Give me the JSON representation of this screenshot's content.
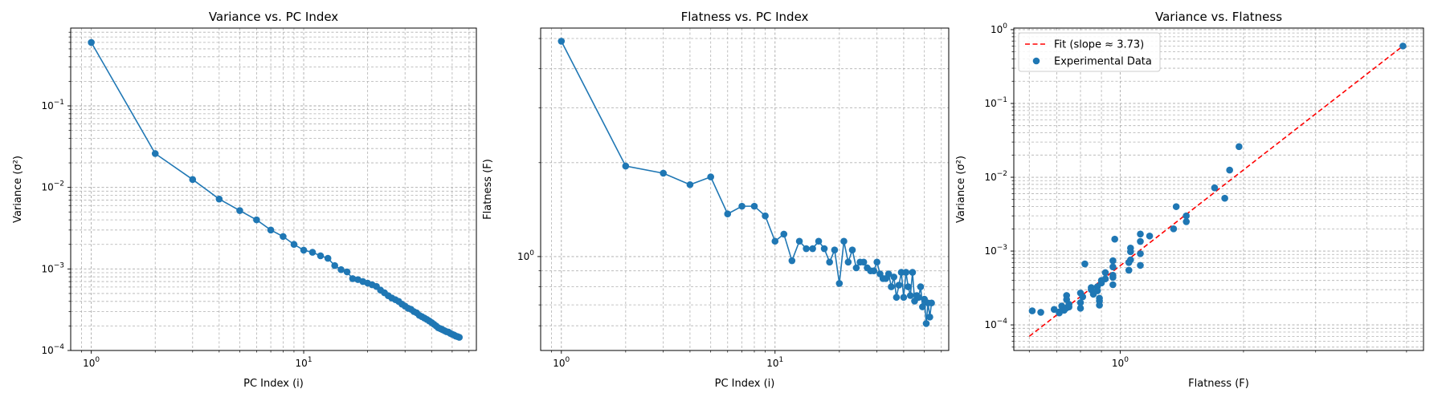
{
  "chart_data": [
    {
      "type": "line",
      "title": "Variance vs. PC Index",
      "xlabel": "PC Index (i)",
      "ylabel": "Variance (σ²)",
      "xscale": "log",
      "yscale": "log",
      "xlim": [
        0.8,
        65
      ],
      "ylim": [
        0.0001,
        0.9
      ],
      "grid": "both-major-minor",
      "color": "#1f77b4",
      "xticks": [
        {
          "value": 1,
          "base": "10",
          "exp": "0"
        },
        {
          "value": 10,
          "base": "10",
          "exp": "1"
        }
      ],
      "yticks": [
        {
          "value": 0.0001,
          "base": "10",
          "exp": "−4"
        },
        {
          "value": 0.001,
          "base": "10",
          "exp": "−3"
        },
        {
          "value": 0.01,
          "base": "10",
          "exp": "−2"
        },
        {
          "value": 0.1,
          "base": "10",
          "exp": "−1"
        }
      ],
      "x": [
        1,
        2,
        3,
        4,
        5,
        6,
        7,
        8,
        9,
        10,
        11,
        12,
        13,
        14,
        15,
        16,
        17,
        18,
        19,
        20,
        21,
        22,
        23,
        24,
        25,
        26,
        27,
        28,
        29,
        30,
        31,
        32,
        33,
        34,
        35,
        36,
        37,
        38,
        39,
        40,
        41,
        42,
        43,
        44,
        45,
        46,
        47,
        48,
        49,
        50,
        51,
        52,
        53,
        54
      ],
      "y": [
        0.6,
        0.026,
        0.0125,
        0.0072,
        0.0052,
        0.004,
        0.003,
        0.0025,
        0.002,
        0.0017,
        0.0016,
        0.00145,
        0.00135,
        0.0011,
        0.00098,
        0.00092,
        0.00076,
        0.00074,
        0.0007,
        0.00067,
        0.00064,
        0.00061,
        0.00055,
        0.00051,
        0.00047,
        0.00044,
        0.00042,
        0.0004,
        0.00037,
        0.00035,
        0.00033,
        0.00032,
        0.0003,
        0.00029,
        0.00027,
        0.00026,
        0.00025,
        0.00024,
        0.00023,
        0.00022,
        0.00021,
        0.0002,
        0.00019,
        0.000185,
        0.00018,
        0.000175,
        0.00017,
        0.000168,
        0.000162,
        0.000158,
        0.000155,
        0.00015,
        0.000148,
        0.000145
      ]
    },
    {
      "type": "line",
      "title": "Flatness vs. PC Index",
      "xlabel": "PC Index (i)",
      "ylabel": "Flatness (F)",
      "xscale": "log",
      "yscale": "log",
      "xlim": [
        0.8,
        65
      ],
      "ylim": [
        0.5,
        5.4
      ],
      "grid": "both-major-minor",
      "color": "#1f77b4",
      "xticks": [
        {
          "value": 1,
          "base": "10",
          "exp": "0"
        },
        {
          "value": 10,
          "base": "10",
          "exp": "1"
        }
      ],
      "yticks": [
        {
          "value": 1,
          "base": "10",
          "exp": "0"
        }
      ],
      "x": [
        1,
        2,
        3,
        4,
        5,
        6,
        7,
        8,
        9,
        10,
        11,
        12,
        13,
        14,
        15,
        16,
        17,
        18,
        19,
        20,
        21,
        22,
        23,
        24,
        25,
        26,
        27,
        28,
        29,
        30,
        31,
        32,
        33,
        34,
        35,
        36,
        37,
        38,
        39,
        40,
        41,
        42,
        43,
        44,
        45,
        46,
        47,
        48,
        49,
        50,
        51,
        52,
        53,
        54
      ],
      "y": [
        4.9,
        1.95,
        1.85,
        1.7,
        1.8,
        1.37,
        1.45,
        1.45,
        1.35,
        1.12,
        1.18,
        0.97,
        1.12,
        1.06,
        1.06,
        1.12,
        1.06,
        0.96,
        1.05,
        0.82,
        1.12,
        0.96,
        1.05,
        0.92,
        0.96,
        0.96,
        0.92,
        0.9,
        0.9,
        0.96,
        0.88,
        0.85,
        0.85,
        0.88,
        0.8,
        0.86,
        0.74,
        0.81,
        0.89,
        0.74,
        0.89,
        0.8,
        0.75,
        0.89,
        0.72,
        0.75,
        0.74,
        0.8,
        0.69,
        0.73,
        0.61,
        0.71,
        0.64,
        0.71
      ]
    },
    {
      "type": "scatter",
      "title": "Variance vs. Flatness",
      "xlabel": "Flatness (F)",
      "ylabel": "Variance (σ²)",
      "xscale": "log",
      "yscale": "log",
      "xlim": [
        0.55,
        5.5
      ],
      "ylim": [
        4.5e-05,
        1.05
      ],
      "grid": "both-major-minor",
      "xticks": [
        {
          "value": 1,
          "base": "10",
          "exp": "0"
        }
      ],
      "yticks": [
        {
          "value": 0.0001,
          "base": "10",
          "exp": "−4"
        },
        {
          "value": 0.001,
          "base": "10",
          "exp": "−3"
        },
        {
          "value": 0.01,
          "base": "10",
          "exp": "−2"
        },
        {
          "value": 0.1,
          "base": "10",
          "exp": "−1"
        },
        {
          "value": 1,
          "base": "10",
          "exp": "0"
        }
      ],
      "legend": {
        "position": "top-left",
        "entries": [
          "Fit (slope ≈ 3.73)",
          "Experimental Data"
        ]
      },
      "fit_line": {
        "name": "Fit (slope ≈ 3.73)",
        "color": "#ff0000",
        "style": "dashed",
        "x": [
          0.6,
          4.9
        ],
        "y": [
          7e-05,
          0.6
        ]
      },
      "series": [
        {
          "name": "Experimental Data",
          "color": "#1f77b4",
          "points": [
            [
              4.9,
              0.6
            ],
            [
              1.95,
              0.026
            ],
            [
              1.85,
              0.0125
            ],
            [
              1.7,
              0.0072
            ],
            [
              1.8,
              0.0052
            ],
            [
              1.37,
              0.004
            ],
            [
              1.45,
              0.003
            ],
            [
              1.45,
              0.0025
            ],
            [
              1.35,
              0.002
            ],
            [
              1.12,
              0.0017
            ],
            [
              1.18,
              0.0016
            ],
            [
              0.97,
              0.00145
            ],
            [
              1.12,
              0.00135
            ],
            [
              1.06,
              0.0011
            ],
            [
              1.06,
              0.00098
            ],
            [
              1.12,
              0.00092
            ],
            [
              1.06,
              0.00076
            ],
            [
              0.96,
              0.00074
            ],
            [
              1.05,
              0.0007
            ],
            [
              0.82,
              0.00067
            ],
            [
              1.12,
              0.00064
            ],
            [
              0.96,
              0.00061
            ],
            [
              1.05,
              0.00055
            ],
            [
              0.92,
              0.00051
            ],
            [
              0.96,
              0.00047
            ],
            [
              0.96,
              0.00044
            ],
            [
              0.92,
              0.00042
            ],
            [
              0.9,
              0.0004
            ],
            [
              0.9,
              0.00037
            ],
            [
              0.96,
              0.00035
            ],
            [
              0.88,
              0.00033
            ],
            [
              0.85,
              0.00032
            ],
            [
              0.85,
              0.0003
            ],
            [
              0.88,
              0.00029
            ],
            [
              0.8,
              0.00027
            ],
            [
              0.86,
              0.00026
            ],
            [
              0.74,
              0.00025
            ],
            [
              0.81,
              0.00024
            ],
            [
              0.89,
              0.00023
            ],
            [
              0.74,
              0.00022
            ],
            [
              0.89,
              0.00021
            ],
            [
              0.8,
              0.0002
            ],
            [
              0.75,
              0.00019
            ],
            [
              0.89,
              0.000185
            ],
            [
              0.72,
              0.00018
            ],
            [
              0.75,
              0.000175
            ],
            [
              0.74,
              0.00017
            ],
            [
              0.8,
              0.000168
            ],
            [
              0.69,
              0.000162
            ],
            [
              0.73,
              0.000158
            ],
            [
              0.61,
              0.000155
            ],
            [
              0.71,
              0.00015
            ],
            [
              0.64,
              0.000148
            ],
            [
              0.71,
              0.000145
            ]
          ]
        }
      ]
    }
  ]
}
